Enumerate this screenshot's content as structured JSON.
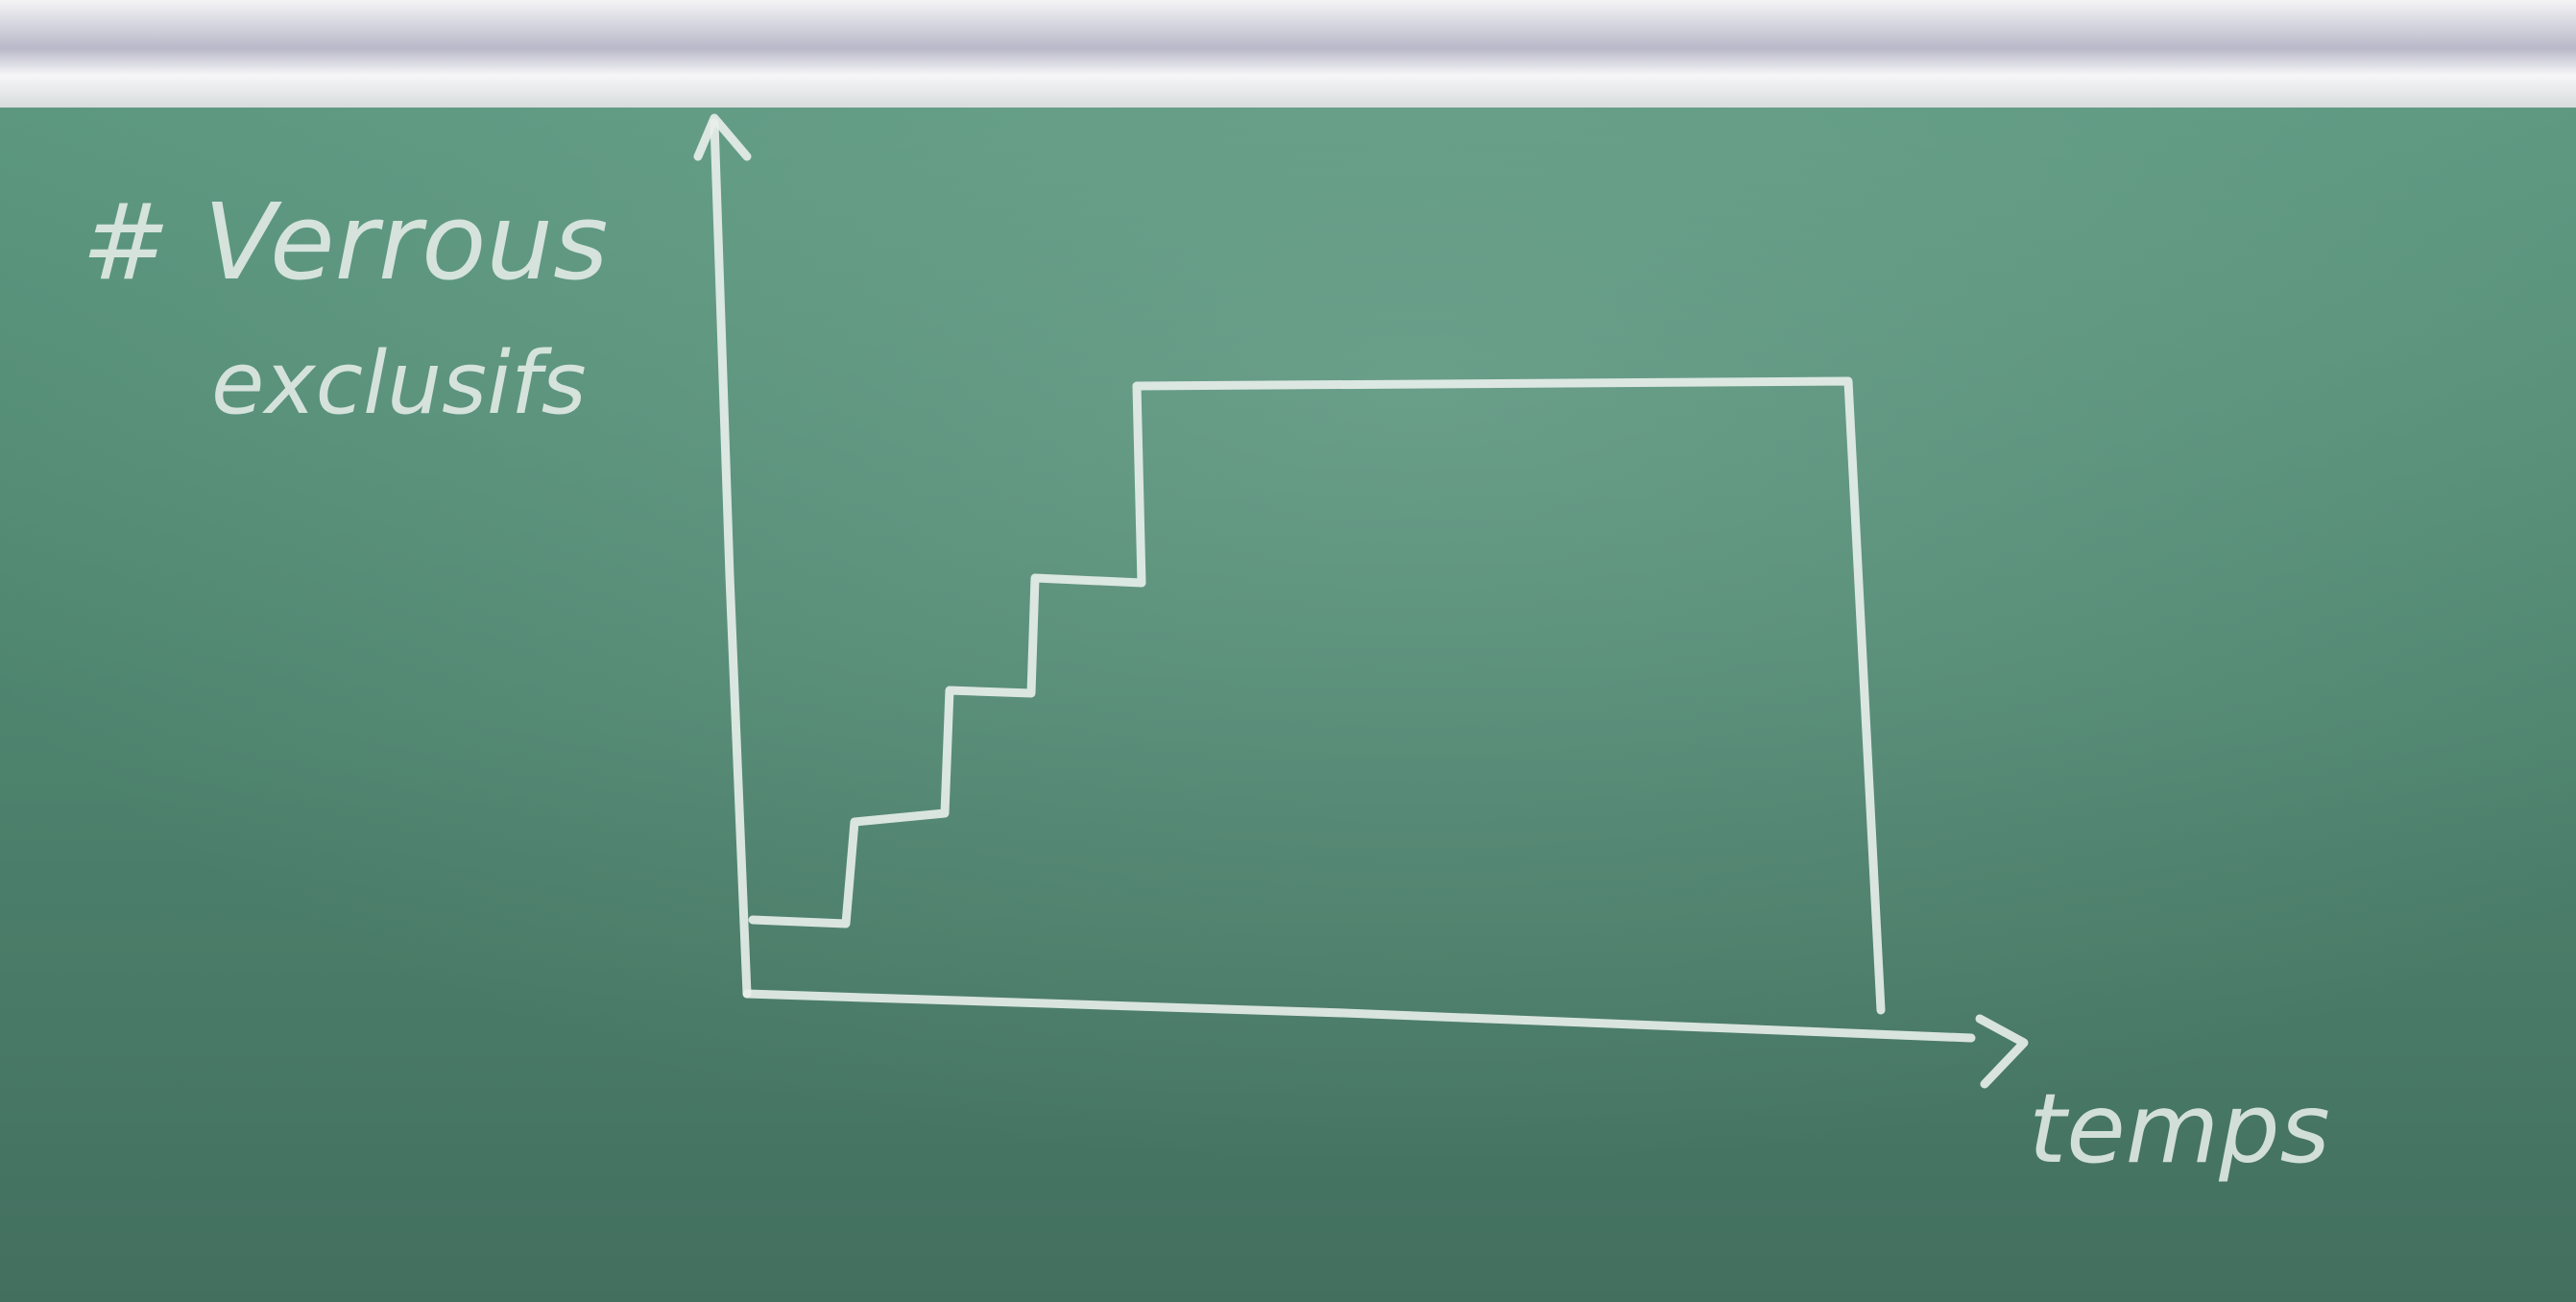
{
  "board": {
    "note": {
      "lines": [
        "# Verrous",
        "exclusifs"
      ]
    },
    "x_axis_label": "temps"
  }
}
